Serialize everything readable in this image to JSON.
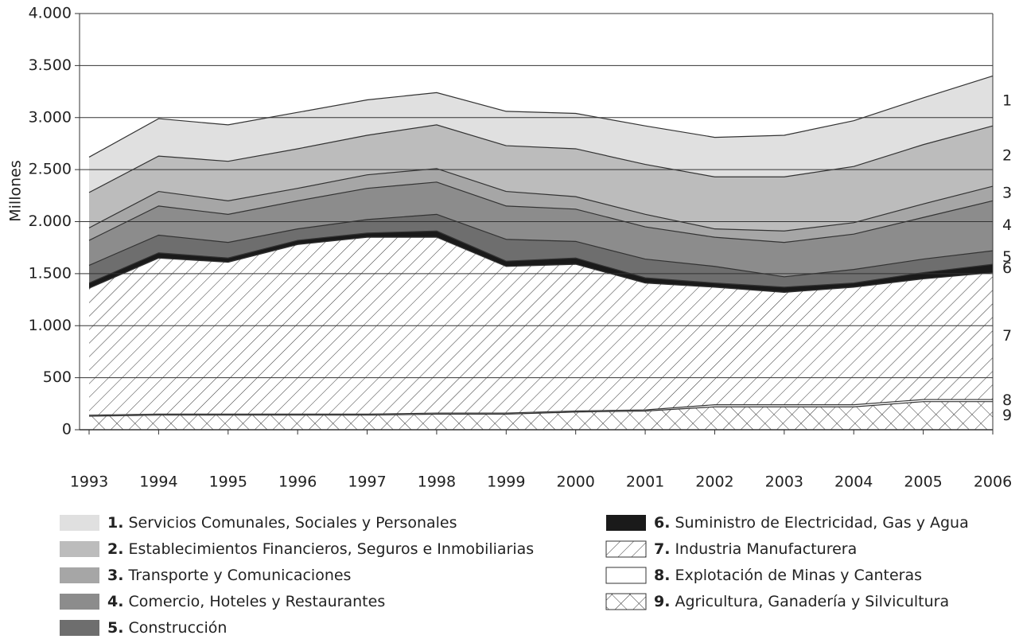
{
  "chart_data": {
    "type": "stacked_area",
    "y_label": "Millones",
    "categories": [
      "1993",
      "1994",
      "1995",
      "1996",
      "1997",
      "1998",
      "1999",
      "2000",
      "2001",
      "2002",
      "2003",
      "2004",
      "2005",
      "2006"
    ],
    "ylim": [
      0,
      4000
    ],
    "yticks": [
      0,
      500,
      {
        "value": 1000,
        "label": "1.000"
      },
      {
        "value": 1500,
        "label": "1.500"
      },
      {
        "value": 2000,
        "label": "2.000"
      },
      {
        "value": 2500,
        "label": "2.500"
      },
      {
        "value": 3000,
        "label": "3.000"
      },
      {
        "value": 3500,
        "label": "3.500"
      },
      {
        "value": 4000,
        "label": "4.000"
      }
    ],
    "grid": true,
    "series": [
      {
        "name": "Agricultura, Ganadería y Silvicultura",
        "legend_number": "9.",
        "end_label": "9",
        "color": "#ffffff",
        "pattern": "crosshatch",
        "values": [
          130,
          140,
          140,
          140,
          140,
          150,
          150,
          170,
          180,
          220,
          220,
          220,
          270,
          270
        ]
      },
      {
        "name": "Explotación de Minas y Canteras",
        "legend_number": "8.",
        "end_label": "8",
        "color": "#ffffff",
        "values": [
          10,
          10,
          10,
          10,
          10,
          10,
          10,
          10,
          10,
          20,
          20,
          20,
          20,
          20
        ]
      },
      {
        "name": "Industria Manufacturera",
        "legend_number": "7.",
        "end_label": "7",
        "color": "#ffffff",
        "pattern": "hatch",
        "values": [
          1220,
          1500,
          1460,
          1630,
          1700,
          1690,
          1410,
          1410,
          1220,
          1130,
          1080,
          1130,
          1160,
          1220
        ]
      },
      {
        "name": "Suministro de Electricidad, Gas y Agua",
        "legend_number": "6.",
        "end_label": "6",
        "color": "#1a1a1a",
        "values": [
          50,
          50,
          40,
          40,
          40,
          60,
          50,
          60,
          50,
          40,
          50,
          40,
          60,
          80
        ]
      },
      {
        "name": "Construcción",
        "legend_number": "5.",
        "end_label": "5",
        "color": "#6e6e6e",
        "values": [
          170,
          170,
          150,
          110,
          130,
          160,
          210,
          160,
          180,
          160,
          100,
          130,
          130,
          130
        ]
      },
      {
        "name": "Comercio, Hoteles y Restaurantes",
        "legend_number": "4.",
        "end_label": "4",
        "color": "#8c8c8c",
        "values": [
          240,
          280,
          270,
          270,
          300,
          310,
          320,
          310,
          310,
          280,
          330,
          340,
          400,
          480
        ]
      },
      {
        "name": "Transporte y Comunicaciones",
        "legend_number": "3.",
        "end_label": "3",
        "color": "#a6a6a6",
        "values": [
          120,
          140,
          130,
          120,
          130,
          130,
          140,
          120,
          120,
          80,
          110,
          110,
          130,
          140
        ]
      },
      {
        "name": "Establecimientos Financieros, Seguros e Inmobiliarias",
        "legend_number": "2.",
        "end_label": "2",
        "color": "#bcbcbc",
        "values": [
          340,
          340,
          380,
          380,
          380,
          420,
          440,
          460,
          480,
          500,
          520,
          540,
          570,
          580
        ]
      },
      {
        "name": "Servicios Comunales, Sociales y Personales",
        "legend_number": "1.",
        "end_label": "1",
        "color": "#e0e0e0",
        "values": [
          340,
          360,
          350,
          350,
          340,
          310,
          330,
          340,
          370,
          380,
          400,
          440,
          450,
          480
        ]
      }
    ]
  }
}
